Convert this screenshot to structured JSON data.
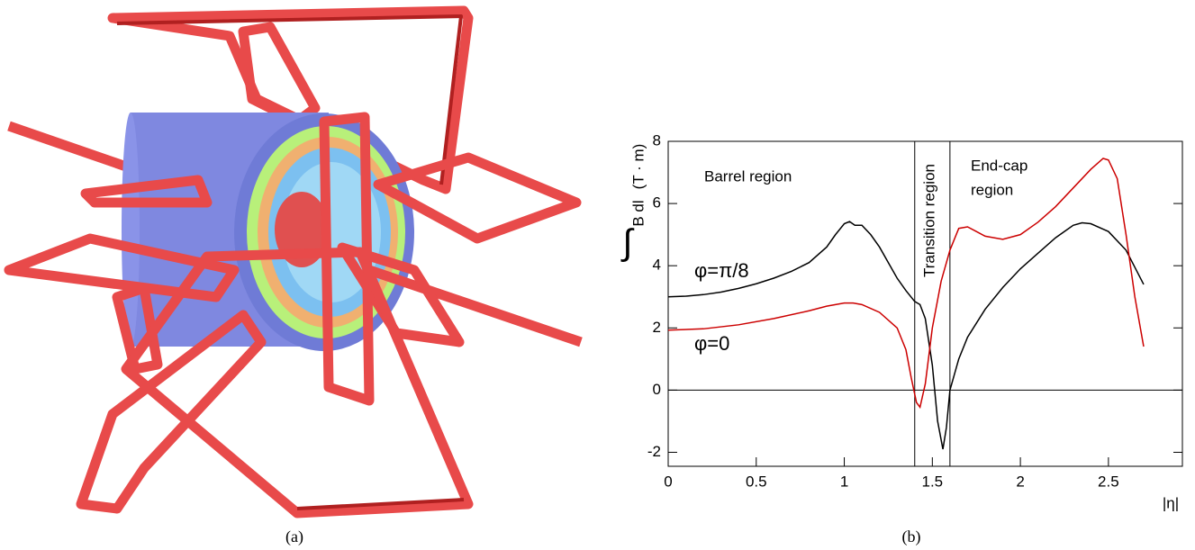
{
  "captions": [
    "(a)",
    "(b)"
  ],
  "chart_data": {
    "type": "line",
    "xlabel": "|η|",
    "ylabel": "B dl",
    "ylabel_symbol": "∫",
    "yunit": "(T · m)",
    "xlim": [
      0,
      2.92
    ],
    "ylim": [
      -2.45,
      8
    ],
    "xticks": [
      0,
      0.5,
      1,
      1.5,
      2,
      2.5
    ],
    "yticks": [
      -2,
      0,
      2,
      4,
      6,
      8
    ],
    "vlines": [
      1.4,
      1.6
    ],
    "hlines": [
      0
    ],
    "annotations": [
      "Barrel region",
      "Transition region",
      "End-cap",
      "region"
    ],
    "series": [
      {
        "name": "φ=π/8",
        "color": "#000000",
        "x": [
          0,
          0.1,
          0.2,
          0.3,
          0.4,
          0.5,
          0.6,
          0.7,
          0.8,
          0.9,
          0.95,
          1.0,
          1.03,
          1.06,
          1.1,
          1.15,
          1.2,
          1.25,
          1.3,
          1.35,
          1.4,
          1.43,
          1.46,
          1.5,
          1.53,
          1.56,
          1.58,
          1.6,
          1.65,
          1.7,
          1.8,
          1.9,
          2.0,
          2.1,
          2.2,
          2.3,
          2.35,
          2.4,
          2.5,
          2.6,
          2.7
        ],
        "values": [
          3.0,
          3.02,
          3.07,
          3.15,
          3.27,
          3.42,
          3.6,
          3.82,
          4.1,
          4.6,
          5.0,
          5.35,
          5.42,
          5.3,
          5.3,
          5.0,
          4.6,
          4.1,
          3.6,
          3.2,
          2.85,
          2.75,
          2.3,
          0.8,
          -1.0,
          -1.9,
          -1.2,
          0.0,
          1.0,
          1.7,
          2.6,
          3.3,
          3.9,
          4.4,
          4.9,
          5.3,
          5.38,
          5.35,
          5.1,
          4.5,
          3.4
        ]
      },
      {
        "name": "φ=0",
        "color": "#cc0000",
        "x": [
          0,
          0.2,
          0.4,
          0.6,
          0.8,
          0.9,
          1.0,
          1.05,
          1.1,
          1.2,
          1.3,
          1.35,
          1.38,
          1.41,
          1.43,
          1.46,
          1.5,
          1.55,
          1.6,
          1.65,
          1.7,
          1.75,
          1.8,
          1.85,
          1.9,
          2.0,
          2.1,
          2.2,
          2.3,
          2.4,
          2.47,
          2.5,
          2.55,
          2.6,
          2.65,
          2.7
        ],
        "values": [
          1.93,
          1.97,
          2.1,
          2.3,
          2.55,
          2.7,
          2.8,
          2.8,
          2.75,
          2.5,
          2.0,
          1.3,
          0.4,
          -0.4,
          -0.55,
          0.2,
          2.0,
          3.5,
          4.5,
          5.2,
          5.25,
          5.1,
          4.95,
          4.9,
          4.85,
          5.0,
          5.4,
          5.9,
          6.5,
          7.1,
          7.45,
          7.4,
          6.8,
          5.0,
          3.0,
          1.4
        ]
      }
    ]
  }
}
